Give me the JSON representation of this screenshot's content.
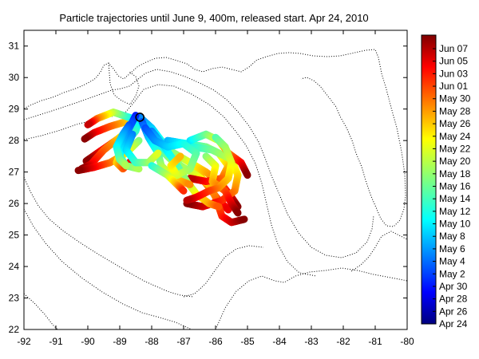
{
  "title": "Particle trajectories until June 9, 400m, released start. Apr 24, 2010",
  "map": {
    "lon_range": [
      -92,
      -80
    ],
    "lat_range": [
      22,
      31.5
    ],
    "x_ticks": [
      -92,
      -91,
      -90,
      -89,
      -88,
      -87,
      -86,
      -85,
      -84,
      -83,
      -82,
      -81,
      -80
    ],
    "y_ticks": [
      22,
      23,
      24,
      25,
      26,
      27,
      28,
      29,
      30,
      31
    ],
    "release_point": {
      "lon": -88.37,
      "lat": 28.74
    },
    "coastline_style": "dotted",
    "bathymetry_contours": "dotted"
  },
  "colorbar": {
    "labels": [
      "Jun 07",
      "Jun 05",
      "Jun 03",
      "Jun 01",
      "May 30",
      "May 28",
      "May 26",
      "May 24",
      "May 22",
      "May 20",
      "May 18",
      "May 16",
      "May 14",
      "May 12",
      "May 10",
      "May 8",
      "May 6",
      "May 4",
      "May 2",
      "Apr 30",
      "Apr 28",
      "Apr 26",
      "Apr 24"
    ],
    "colormap": "jet",
    "top_color": "#7f0000",
    "bottom_color": "#00007f"
  },
  "trajectories": [
    {
      "t0": 0.55,
      "t1": 1.0,
      "pts": [
        [
          -88.37,
          28.74
        ],
        [
          -88.8,
          28.6
        ],
        [
          -89.3,
          28.45
        ],
        [
          -89.8,
          28.25
        ],
        [
          -90.1,
          28.05
        ]
      ]
    },
    {
      "t0": 0.6,
      "t1": 1.0,
      "pts": [
        [
          -88.37,
          28.74
        ],
        [
          -88.7,
          28.3
        ],
        [
          -89.2,
          27.95
        ],
        [
          -89.7,
          27.6
        ],
        [
          -90.05,
          27.35
        ]
      ]
    },
    {
      "t0": 0.55,
      "t1": 1.0,
      "pts": [
        [
          -88.5,
          28.5
        ],
        [
          -89.0,
          28.1
        ],
        [
          -89.5,
          27.7
        ],
        [
          -89.9,
          27.25
        ],
        [
          -90.2,
          27.1
        ]
      ]
    },
    {
      "t0": 0.5,
      "t1": 1.0,
      "pts": [
        [
          -88.4,
          28.0
        ],
        [
          -88.8,
          27.6
        ],
        [
          -89.3,
          27.3
        ],
        [
          -89.8,
          27.15
        ],
        [
          -90.3,
          27.05
        ]
      ]
    },
    {
      "t0": 0.3,
      "t1": 0.9,
      "pts": [
        [
          -88.37,
          28.74
        ],
        [
          -88.5,
          28.3
        ],
        [
          -88.9,
          27.8
        ],
        [
          -89.1,
          27.3
        ],
        [
          -88.9,
          27.1
        ],
        [
          -88.6,
          27.4
        ]
      ]
    },
    {
      "t0": 0.35,
      "t1": 0.95,
      "pts": [
        [
          -88.6,
          28.7
        ],
        [
          -89.2,
          28.9
        ],
        [
          -89.7,
          28.7
        ],
        [
          -90.0,
          28.5
        ]
      ]
    },
    {
      "t0": 0.25,
      "t1": 0.9,
      "pts": [
        [
          -88.37,
          28.74
        ],
        [
          -88.0,
          28.4
        ],
        [
          -87.7,
          28.0
        ],
        [
          -87.6,
          27.6
        ],
        [
          -87.3,
          27.3
        ],
        [
          -87.0,
          27.1
        ],
        [
          -86.5,
          26.9
        ],
        [
          -86.2,
          26.5
        ],
        [
          -85.9,
          26.1
        ],
        [
          -85.6,
          25.8
        ]
      ]
    },
    {
      "t0": 0.3,
      "t1": 1.0,
      "pts": [
        [
          -88.2,
          28.5
        ],
        [
          -87.8,
          27.9
        ],
        [
          -87.3,
          27.6
        ],
        [
          -86.8,
          27.3
        ],
        [
          -86.3,
          27.0
        ],
        [
          -85.8,
          26.6
        ],
        [
          -85.5,
          26.2
        ],
        [
          -85.3,
          25.9
        ]
      ]
    },
    {
      "t0": 0.35,
      "t1": 1.0,
      "pts": [
        [
          -87.9,
          28.1
        ],
        [
          -87.5,
          27.6
        ],
        [
          -87.1,
          27.2
        ],
        [
          -86.6,
          26.9
        ],
        [
          -86.2,
          26.6
        ],
        [
          -86.0,
          26.2
        ],
        [
          -85.8,
          25.6
        ],
        [
          -85.5,
          25.4
        ],
        [
          -85.1,
          25.5
        ]
      ]
    },
    {
      "t0": 0.3,
      "t1": 0.95,
      "pts": [
        [
          -87.5,
          28.0
        ],
        [
          -86.9,
          27.9
        ],
        [
          -86.3,
          27.8
        ],
        [
          -85.9,
          27.6
        ],
        [
          -85.6,
          27.2
        ],
        [
          -85.8,
          26.8
        ],
        [
          -86.3,
          26.7
        ],
        [
          -86.8,
          26.8
        ]
      ]
    },
    {
      "t0": 0.4,
      "t1": 1.0,
      "pts": [
        [
          -86.7,
          27.8
        ],
        [
          -86.1,
          27.7
        ],
        [
          -85.5,
          27.4
        ],
        [
          -85.3,
          26.9
        ],
        [
          -85.4,
          26.4
        ],
        [
          -85.8,
          26.1
        ],
        [
          -86.4,
          25.9
        ],
        [
          -86.9,
          26.0
        ]
      ]
    },
    {
      "t0": 0.35,
      "t1": 1.0,
      "pts": [
        [
          -86.8,
          28.0
        ],
        [
          -86.3,
          28.2
        ],
        [
          -85.9,
          28.0
        ],
        [
          -85.6,
          27.6
        ],
        [
          -85.2,
          27.3
        ],
        [
          -85.0,
          26.9
        ]
      ]
    },
    {
      "t0": 0.25,
      "t1": 0.8,
      "pts": [
        [
          -88.0,
          28.3
        ],
        [
          -87.6,
          27.8
        ],
        [
          -87.2,
          27.2
        ],
        [
          -86.9,
          26.7
        ],
        [
          -86.6,
          26.3
        ],
        [
          -86.2,
          26.0
        ],
        [
          -85.9,
          25.9
        ]
      ]
    },
    {
      "t0": 0.2,
      "t1": 0.75,
      "pts": [
        [
          -88.3,
          28.6
        ],
        [
          -88.1,
          28.1
        ],
        [
          -87.8,
          27.6
        ],
        [
          -87.7,
          27.2
        ],
        [
          -87.3,
          26.8
        ],
        [
          -86.8,
          26.6
        ]
      ]
    },
    {
      "t0": 0.15,
      "t1": 0.55,
      "pts": [
        [
          -88.5,
          28.8
        ],
        [
          -88.7,
          28.4
        ],
        [
          -88.9,
          27.9
        ],
        [
          -89.0,
          27.5
        ],
        [
          -88.8,
          27.2
        ],
        [
          -88.4,
          27.1
        ]
      ]
    },
    {
      "t0": 0.25,
      "t1": 0.6,
      "pts": [
        [
          -88.6,
          28.2
        ],
        [
          -88.8,
          27.7
        ],
        [
          -88.5,
          27.3
        ],
        [
          -88.1,
          27.3
        ],
        [
          -87.8,
          27.6
        ]
      ]
    },
    {
      "t0": 0.2,
      "t1": 0.7,
      "pts": [
        [
          -88.2,
          28.4
        ],
        [
          -87.9,
          28.0
        ],
        [
          -87.5,
          27.8
        ],
        [
          -87.0,
          27.9
        ],
        [
          -86.6,
          27.6
        ],
        [
          -86.8,
          27.1
        ],
        [
          -87.2,
          26.9
        ],
        [
          -87.4,
          27.2
        ],
        [
          -87.1,
          27.5
        ]
      ]
    },
    {
      "t0": 0.5,
      "t1": 1.0,
      "pts": [
        [
          -86.3,
          27.5
        ],
        [
          -86.0,
          27.2
        ],
        [
          -86.1,
          26.7
        ],
        [
          -85.7,
          26.4
        ],
        [
          -85.5,
          26.0
        ],
        [
          -85.3,
          25.7
        ]
      ]
    },
    {
      "t0": 0.45,
      "t1": 0.95,
      "pts": [
        [
          -86.0,
          28.1
        ],
        [
          -85.7,
          27.8
        ],
        [
          -85.5,
          27.3
        ],
        [
          -85.6,
          26.8
        ],
        [
          -85.9,
          26.5
        ],
        [
          -86.2,
          26.4
        ],
        [
          -86.6,
          26.2
        ],
        [
          -86.9,
          26.1
        ]
      ]
    },
    {
      "t0": 0.2,
      "t1": 0.55,
      "pts": [
        [
          -88.7,
          28.5
        ],
        [
          -88.9,
          28.2
        ],
        [
          -89.1,
          27.8
        ],
        [
          -89.0,
          27.4
        ],
        [
          -88.8,
          27.2
        ]
      ]
    },
    {
      "t0": 0.4,
      "t1": 0.85,
      "pts": [
        [
          -88.0,
          27.2
        ],
        [
          -87.5,
          26.9
        ],
        [
          -87.2,
          26.6
        ],
        [
          -87.0,
          26.4
        ]
      ]
    }
  ]
}
